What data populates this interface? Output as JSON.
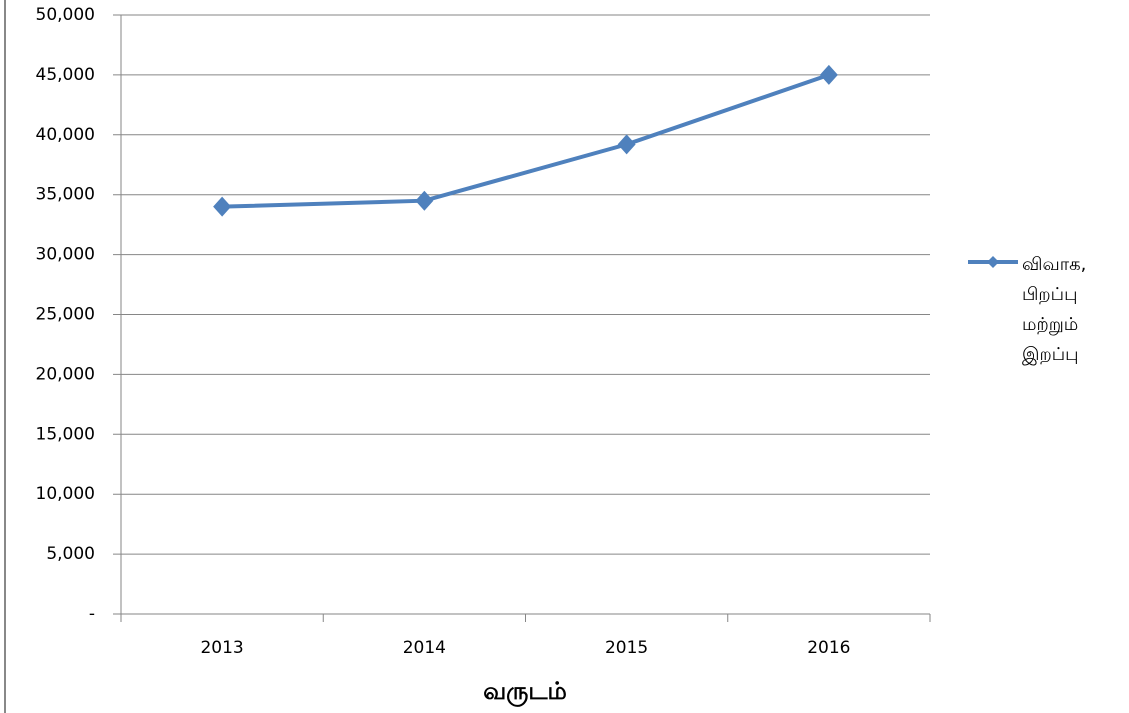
{
  "chart_data": {
    "type": "line",
    "x_label": "வருடம்",
    "categories": [
      "2013",
      "2014",
      "2015",
      "2016"
    ],
    "series": [
      {
        "name": "விவாக, பிறப்பு மற்றும் இறப்பு",
        "color": "#4f81bd",
        "values": [
          34000,
          34500,
          39200,
          45000
        ]
      }
    ],
    "ylim": [
      0,
      50000
    ],
    "yticks": [
      {
        "value": 0,
        "label": "-"
      },
      {
        "value": 5000,
        "label": "5,000"
      },
      {
        "value": 10000,
        "label": "10,000"
      },
      {
        "value": 15000,
        "label": "15,000"
      },
      {
        "value": 20000,
        "label": "20,000"
      },
      {
        "value": 25000,
        "label": "25,000"
      },
      {
        "value": 30000,
        "label": "30,000"
      },
      {
        "value": 35000,
        "label": "35,000"
      },
      {
        "value": 40000,
        "label": "40,000"
      },
      {
        "value": 45000,
        "label": "45,000"
      },
      {
        "value": 50000,
        "label": "50,000"
      }
    ],
    "grid": true,
    "legend": "right"
  }
}
